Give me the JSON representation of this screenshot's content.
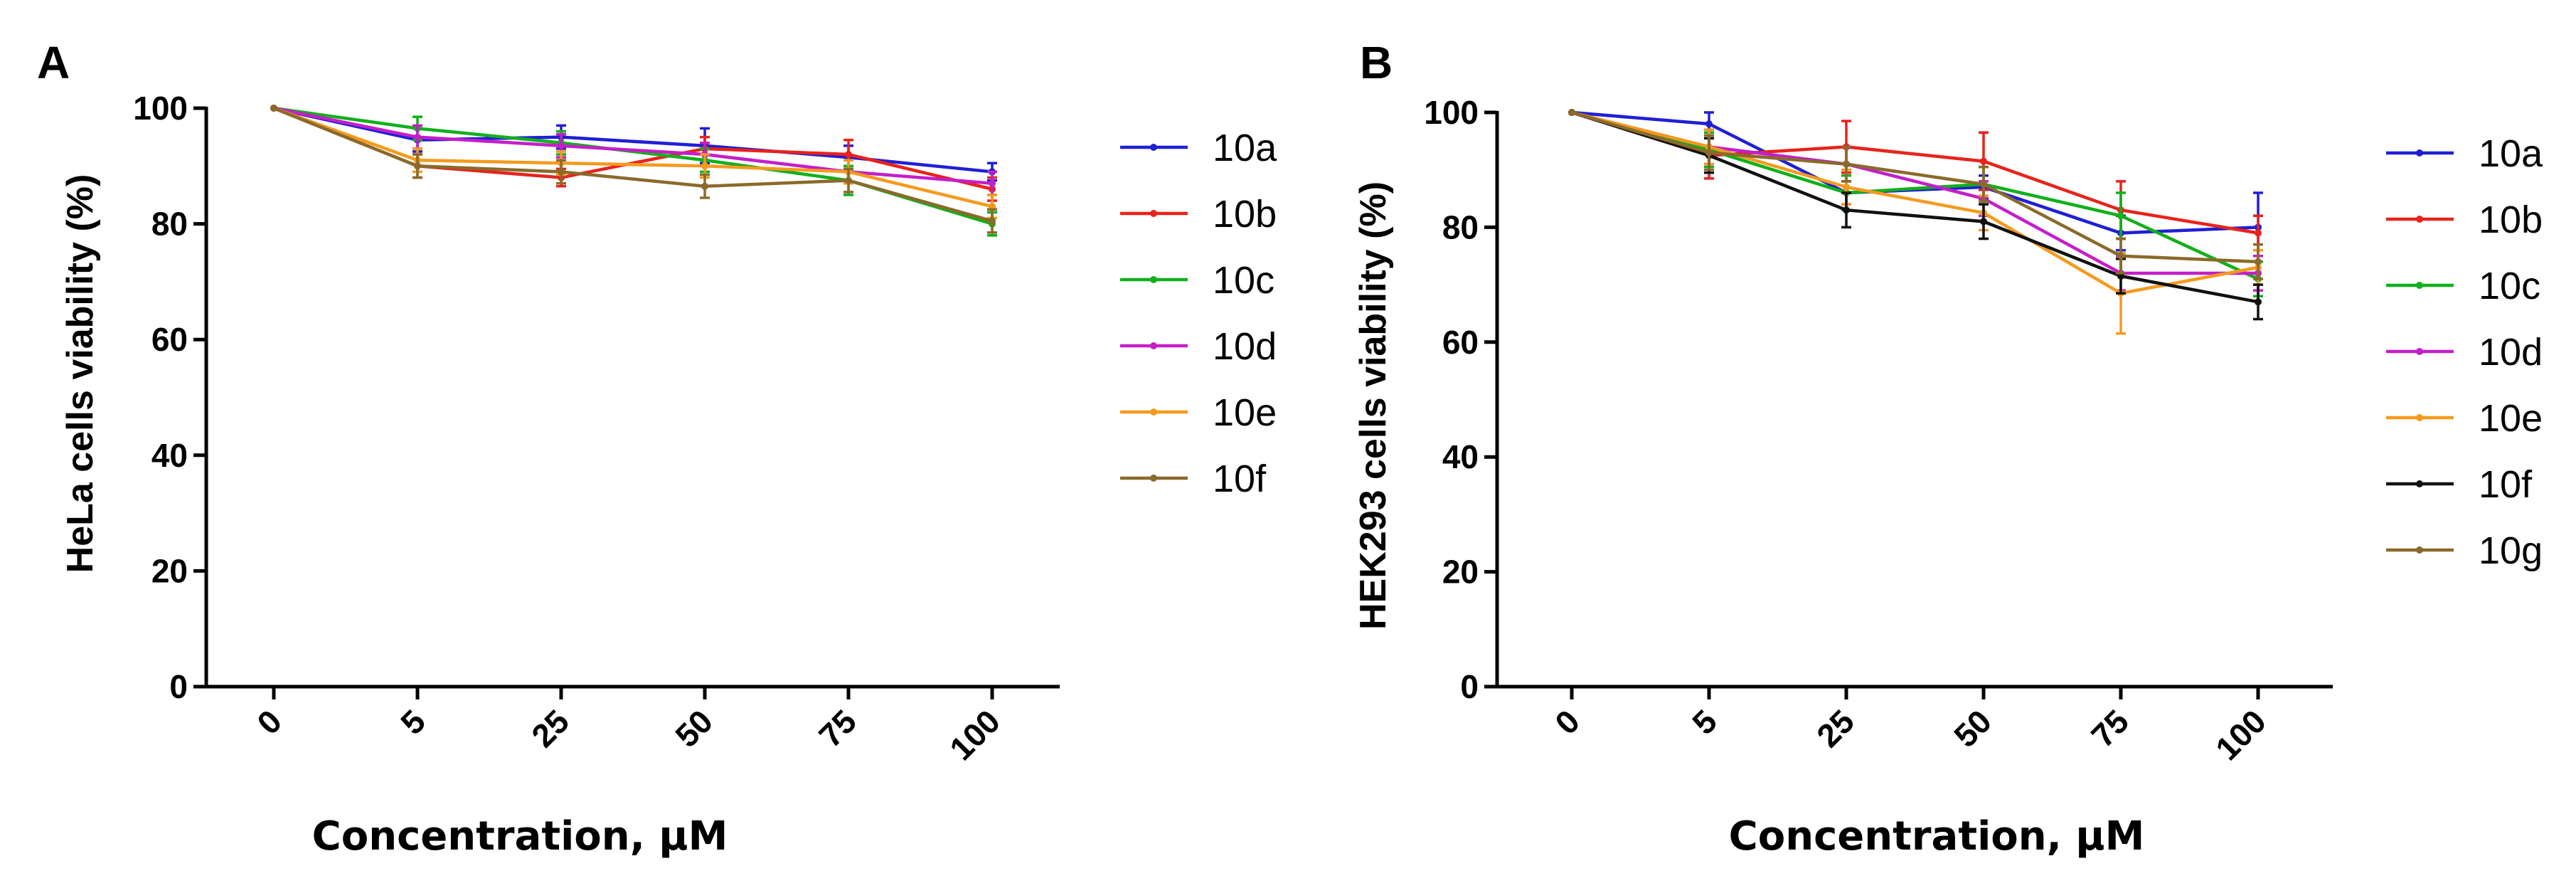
{
  "chart_data": [
    {
      "panel": "A",
      "type": "line",
      "categories": [
        "0",
        "5",
        "25",
        "50",
        "75",
        "100"
      ],
      "xlabel": "Concentration, μM",
      "ylabel": "HeLa cells viability (%)",
      "ylim": [
        0,
        100
      ],
      "yticks": [
        0,
        20,
        40,
        60,
        80,
        100
      ],
      "error_bars": true,
      "series": [
        {
          "name": "10a",
          "color": "#1f1fd6",
          "values": [
            100,
            94.5,
            95,
            93.5,
            91.5,
            89
          ],
          "errors": [
            0,
            2,
            2,
            3,
            2,
            1.5
          ]
        },
        {
          "name": "10b",
          "color": "#e8221c",
          "values": [
            100,
            90,
            88,
            93,
            92,
            86
          ],
          "errors": [
            0,
            2,
            1.5,
            2,
            2.5,
            2
          ]
        },
        {
          "name": "10c",
          "color": "#10b01a",
          "values": [
            100,
            96.5,
            94,
            91,
            87.5,
            80
          ],
          "errors": [
            0,
            2,
            2,
            2,
            2.5,
            2
          ]
        },
        {
          "name": "10d",
          "color": "#c41ec9",
          "values": [
            100,
            95,
            93.5,
            92,
            89,
            87
          ],
          "errors": [
            0,
            2,
            2,
            2,
            2,
            2
          ]
        },
        {
          "name": "10e",
          "color": "#f59a1d",
          "values": [
            100,
            91,
            90.5,
            90,
            89,
            83
          ],
          "errors": [
            0,
            2,
            2,
            2,
            2,
            2
          ]
        },
        {
          "name": "10f",
          "color": "#8a6a2a",
          "values": [
            100,
            90,
            89,
            86.5,
            87.5,
            80.5
          ],
          "errors": [
            0,
            2,
            2,
            2,
            2,
            2
          ]
        }
      ]
    },
    {
      "panel": "B",
      "type": "line",
      "categories": [
        "0",
        "5",
        "25",
        "50",
        "75",
        "100"
      ],
      "xlabel": "Concentration, μM",
      "ylabel": "HEK293 cells viability (%)",
      "ylim": [
        0,
        100
      ],
      "yticks": [
        0,
        20,
        40,
        60,
        80,
        100
      ],
      "error_bars": true,
      "series": [
        {
          "name": "10a",
          "color": "#1f1fd6",
          "values": [
            100,
            98,
            86,
            87,
            79,
            80
          ],
          "errors": [
            0,
            2,
            2,
            2,
            3,
            6
          ]
        },
        {
          "name": "10b",
          "color": "#e8221c",
          "values": [
            100,
            92.5,
            94,
            91.5,
            83,
            79
          ],
          "errors": [
            0,
            4,
            4.5,
            5,
            5,
            3
          ]
        },
        {
          "name": "10c",
          "color": "#10b01a",
          "values": [
            100,
            93.5,
            86,
            87.5,
            82,
            71
          ],
          "errors": [
            0,
            3,
            3,
            3,
            4,
            3
          ]
        },
        {
          "name": "10d",
          "color": "#c41ec9",
          "values": [
            100,
            94,
            91,
            85,
            72,
            72
          ],
          "errors": [
            0,
            3,
            3,
            3,
            3,
            3
          ]
        },
        {
          "name": "10e",
          "color": "#f59a1d",
          "values": [
            100,
            94,
            87,
            82.5,
            68.5,
            73
          ],
          "errors": [
            0,
            3,
            3,
            3,
            7,
            3
          ]
        },
        {
          "name": "10f",
          "color": "#111111",
          "values": [
            100,
            92.5,
            83,
            81,
            71.5,
            67
          ],
          "errors": [
            0,
            3,
            3,
            3,
            3,
            3
          ]
        },
        {
          "name": "10g",
          "color": "#8a6a2a",
          "values": [
            100,
            93,
            91,
            87.5,
            75,
            74
          ],
          "errors": [
            0,
            3,
            3,
            3,
            3,
            3
          ]
        }
      ]
    }
  ],
  "panels": {
    "A": {
      "letter": "A",
      "title": "",
      "xlabel": "Concentration, μM",
      "ylabel": "HeLa cells viability (%)",
      "ytick_labels": [
        "0",
        "20",
        "40",
        "60",
        "80",
        "100"
      ],
      "xtick_labels": [
        "0",
        "5",
        "25",
        "50",
        "75",
        "100"
      ],
      "legend": [
        "10a",
        "10b",
        "10c",
        "10d",
        "10e",
        "10f"
      ]
    },
    "B": {
      "letter": "B",
      "title": "",
      "xlabel": "Concentration, μM",
      "ylabel": "HEK293 cells viability (%)",
      "ytick_labels": [
        "0",
        "20",
        "40",
        "60",
        "80",
        "100"
      ],
      "xtick_labels": [
        "0",
        "5",
        "25",
        "50",
        "75",
        "100"
      ],
      "legend": [
        "10a",
        "10b",
        "10c",
        "10d",
        "10e",
        "10f",
        "10g"
      ]
    }
  }
}
